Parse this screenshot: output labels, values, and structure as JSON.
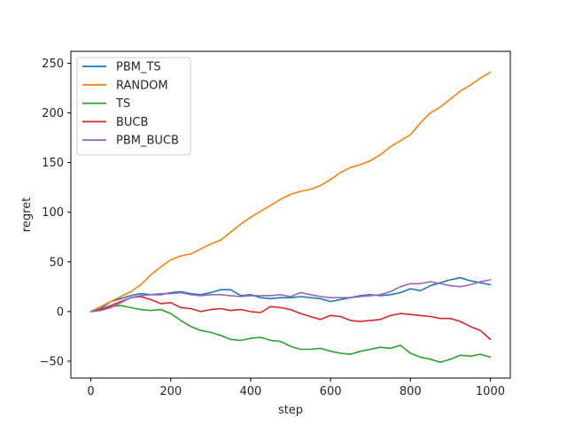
{
  "chart_data": {
    "type": "line",
    "title": "",
    "xlabel": "step",
    "ylabel": "regret",
    "xlim": [
      -50,
      1050
    ],
    "ylim": [
      -67,
      262
    ],
    "xticks": [
      0,
      200,
      400,
      600,
      800,
      1000
    ],
    "yticks": [
      -50,
      0,
      50,
      100,
      150,
      200,
      250
    ],
    "xtick_labels": [
      "0",
      "200",
      "400",
      "600",
      "800",
      "1000"
    ],
    "ytick_labels": [
      "−50",
      "0",
      "50",
      "100",
      "150",
      "200",
      "250"
    ],
    "grid": false,
    "legend": "top-left",
    "series": [
      {
        "name": "PBM_TS",
        "color": "#1f77b4",
        "x": [
          0,
          25,
          50,
          75,
          100,
          125,
          150,
          175,
          200,
          225,
          250,
          275,
          300,
          325,
          350,
          375,
          400,
          425,
          450,
          475,
          500,
          525,
          550,
          575,
          600,
          625,
          650,
          675,
          700,
          725,
          750,
          775,
          800,
          825,
          850,
          875,
          900,
          925,
          950,
          975,
          1000
        ],
        "y": [
          0,
          3,
          10,
          13,
          16,
          18,
          17,
          17,
          19,
          20,
          18,
          17,
          19,
          22,
          22,
          16,
          17,
          14,
          13,
          14,
          14,
          15,
          14,
          13,
          10,
          12,
          14,
          16,
          17,
          16,
          17,
          19,
          23,
          21,
          26,
          29,
          32,
          34,
          31,
          29,
          27
        ]
      },
      {
        "name": "RANDOM",
        "color": "#ff7f0e",
        "x": [
          0,
          25,
          50,
          75,
          100,
          125,
          150,
          175,
          200,
          225,
          250,
          275,
          300,
          325,
          350,
          375,
          400,
          425,
          450,
          475,
          500,
          525,
          550,
          575,
          600,
          625,
          650,
          675,
          700,
          725,
          750,
          775,
          800,
          825,
          850,
          875,
          900,
          925,
          950,
          975,
          1000
        ],
        "y": [
          0,
          5,
          10,
          15,
          20,
          27,
          37,
          45,
          52,
          56,
          58,
          63,
          68,
          72,
          80,
          88,
          95,
          101,
          107,
          113,
          118,
          121,
          123,
          127,
          133,
          140,
          145,
          148,
          152,
          158,
          166,
          172,
          178,
          190,
          200,
          206,
          214,
          222,
          228,
          235,
          241
        ]
      },
      {
        "name": "TS",
        "color": "#2ca02c",
        "x": [
          0,
          25,
          50,
          75,
          100,
          125,
          150,
          175,
          200,
          225,
          250,
          275,
          300,
          325,
          350,
          375,
          400,
          425,
          450,
          475,
          500,
          525,
          550,
          575,
          600,
          625,
          650,
          675,
          700,
          725,
          750,
          775,
          800,
          825,
          850,
          875,
          900,
          925,
          950,
          975,
          1000
        ],
        "y": [
          0,
          2,
          5,
          6,
          4,
          2,
          1,
          2,
          -2,
          -9,
          -15,
          -19,
          -21,
          -24,
          -28,
          -29,
          -27,
          -26,
          -29,
          -30,
          -35,
          -38,
          -38,
          -37,
          -40,
          -42,
          -43,
          -40,
          -38,
          -36,
          -37,
          -34,
          -42,
          -46,
          -48,
          -51,
          -48,
          -44,
          -45,
          -43,
          -46
        ]
      },
      {
        "name": "BUCB",
        "color": "#d62728",
        "x": [
          0,
          25,
          50,
          75,
          100,
          125,
          150,
          175,
          200,
          225,
          250,
          275,
          300,
          325,
          350,
          375,
          400,
          425,
          450,
          475,
          500,
          525,
          550,
          575,
          600,
          625,
          650,
          675,
          700,
          725,
          750,
          775,
          800,
          825,
          850,
          875,
          900,
          925,
          950,
          975,
          1000
        ],
        "y": [
          0,
          2,
          6,
          10,
          14,
          15,
          12,
          8,
          9,
          4,
          3,
          0,
          2,
          3,
          1,
          2,
          0,
          -1,
          5,
          4,
          2,
          -2,
          -5,
          -8,
          -4,
          -5,
          -9,
          -10,
          -9,
          -8,
          -4,
          -2,
          -3,
          -4,
          -5,
          -7,
          -7,
          -10,
          -15,
          -19,
          -28
        ]
      },
      {
        "name": "PBM_BUCB",
        "color": "#9467bd",
        "x": [
          0,
          25,
          50,
          75,
          100,
          125,
          150,
          175,
          200,
          225,
          250,
          275,
          300,
          325,
          350,
          375,
          400,
          425,
          450,
          475,
          500,
          525,
          550,
          575,
          600,
          625,
          650,
          675,
          700,
          725,
          750,
          775,
          800,
          825,
          850,
          875,
          900,
          925,
          950,
          975,
          1000
        ],
        "y": [
          0,
          1,
          4,
          9,
          14,
          16,
          17,
          18,
          18,
          19,
          17,
          16,
          17,
          17,
          16,
          15,
          16,
          16,
          16,
          17,
          15,
          19,
          17,
          15,
          14,
          14,
          14,
          15,
          16,
          17,
          20,
          25,
          28,
          28,
          30,
          28,
          26,
          25,
          27,
          30,
          32
        ]
      }
    ]
  }
}
